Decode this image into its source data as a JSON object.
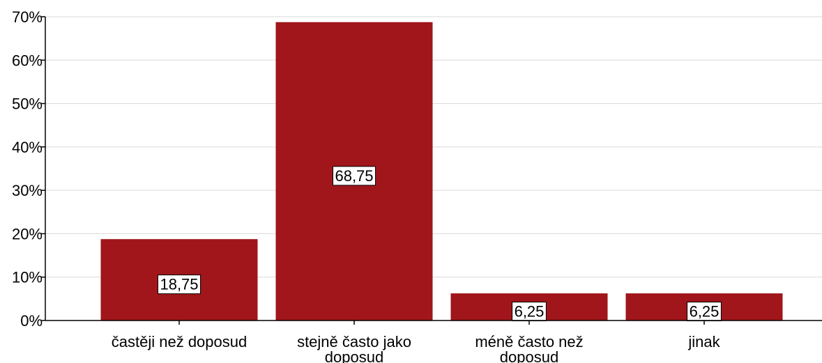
{
  "chart_data": {
    "type": "bar",
    "categories": [
      "častěji než doposud",
      "stejně často jako doposud",
      "méně často než doposud",
      "jinak"
    ],
    "values": [
      18.75,
      68.75,
      6.25,
      6.25
    ],
    "value_labels": [
      "18,75",
      "68,75",
      "6,25",
      "6,25"
    ],
    "color": "#a0161a",
    "ylim": [
      0,
      70
    ],
    "yticks": [
      {
        "value": 0,
        "label": "0%"
      },
      {
        "value": 10,
        "label": "10%"
      },
      {
        "value": 20,
        "label": "20%"
      },
      {
        "value": 30,
        "label": "30%"
      },
      {
        "value": 40,
        "label": "40%"
      },
      {
        "value": 50,
        "label": "50%"
      },
      {
        "value": 60,
        "label": "60%"
      },
      {
        "value": 70,
        "label": "70%"
      }
    ],
    "grid": true
  }
}
